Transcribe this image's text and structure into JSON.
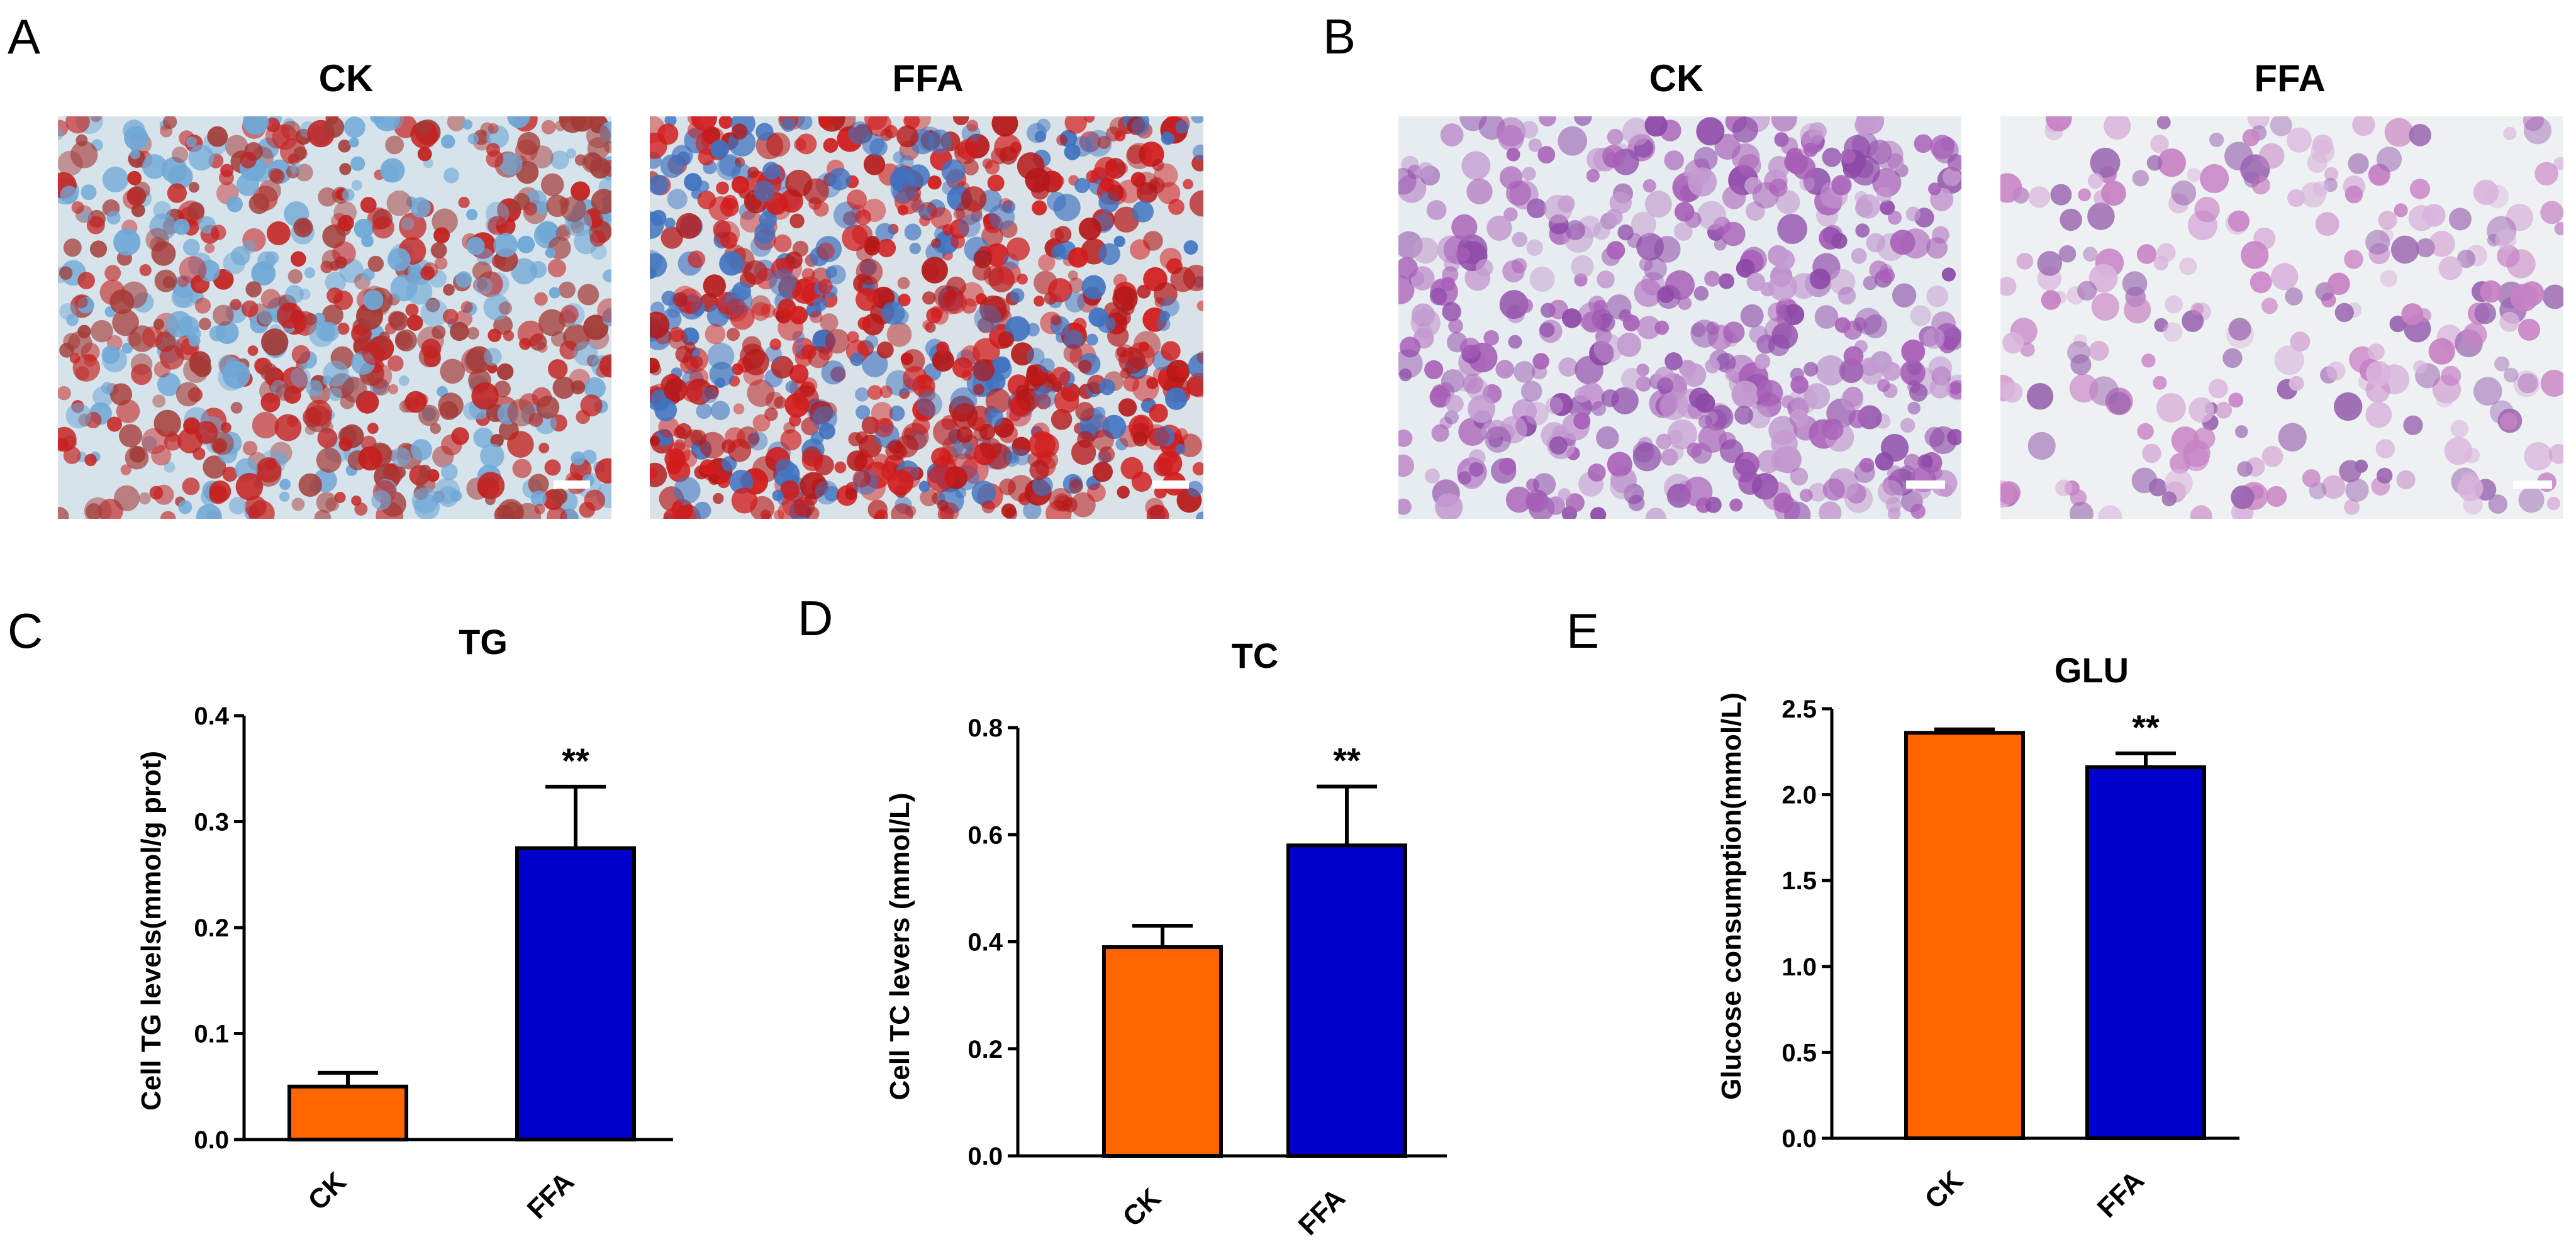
{
  "figure": {
    "panels_images": [
      {
        "letter": "A",
        "stain": "oil-red-o",
        "images": [
          {
            "title": "CK",
            "background": "#d7e3ea",
            "cell_colors": [
              "#c4211f",
              "#6fa8d6",
              "#a33a36"
            ]
          },
          {
            "title": "FFA",
            "background": "#d9e2e6",
            "cell_colors": [
              "#d21c1c",
              "#3f73c0",
              "#b51818"
            ]
          }
        ]
      },
      {
        "letter": "B",
        "stain": "pas",
        "images": [
          {
            "title": "CK",
            "background": "#e6ecef",
            "cell_colors": [
              "#a85fb7",
              "#8d49a8",
              "#c39ad0"
            ]
          },
          {
            "title": "FFA",
            "background": "#eef1f2",
            "cell_colors": [
              "#c781c4",
              "#9a66b0",
              "#d9b5dc"
            ]
          }
        ]
      }
    ],
    "colors": {
      "ck_bar": "#ff6600",
      "ffa_bar": "#0000cc",
      "axis": "#000000"
    }
  },
  "chart_data": [
    {
      "panel": "C",
      "type": "bar",
      "title": "TG",
      "ylabel": "Cell TG levels(mmol/g prot)",
      "categories": [
        "CK",
        "FFA"
      ],
      "values": [
        0.05,
        0.275
      ],
      "errors": [
        0.013,
        0.058
      ],
      "significance": [
        "",
        "**"
      ],
      "ylim": [
        0.0,
        0.4
      ],
      "yticks": [
        "0.0",
        "0.1",
        "0.2",
        "0.3",
        "0.4"
      ]
    },
    {
      "panel": "D",
      "type": "bar",
      "title": "TC",
      "ylabel": "Cell TC levers (mmol/L)",
      "categories": [
        "CK",
        "FFA"
      ],
      "values": [
        0.39,
        0.58
      ],
      "errors": [
        0.04,
        0.11
      ],
      "significance": [
        "",
        "**"
      ],
      "ylim": [
        0.0,
        0.8
      ],
      "yticks": [
        "0.0",
        "0.2",
        "0.4",
        "0.6",
        "0.8"
      ]
    },
    {
      "panel": "E",
      "type": "bar",
      "title": "GLU",
      "ylabel": "Glucose consumption(mmol/L)",
      "categories": [
        "CK",
        "FFA"
      ],
      "values": [
        2.36,
        2.16
      ],
      "errors": [
        0.02,
        0.08
      ],
      "significance": [
        "",
        "**"
      ],
      "ylim": [
        0.0,
        2.5
      ],
      "yticks": [
        "0.0",
        "0.5",
        "1.0",
        "1.5",
        "2.0",
        "2.5"
      ]
    }
  ]
}
